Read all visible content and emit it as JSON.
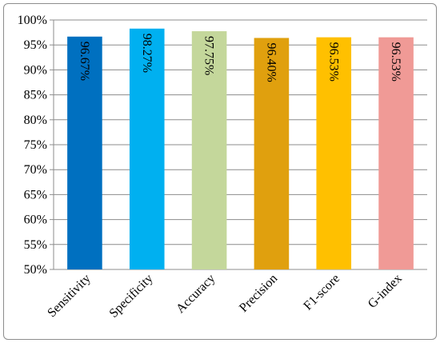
{
  "chart_data": {
    "type": "bar",
    "title": "",
    "xlabel": "",
    "ylabel": "",
    "ylim": [
      50,
      100
    ],
    "ytick_step": 5,
    "ytick_labels": [
      "50%",
      "55%",
      "60%",
      "65%",
      "70%",
      "75%",
      "80%",
      "85%",
      "90%",
      "95%",
      "100%"
    ],
    "grid": true,
    "legend": "none",
    "categories": [
      "Sensitivity",
      "Specificity",
      "Accuracy",
      "Precision",
      "F1-score",
      "G-index"
    ],
    "values": [
      96.67,
      98.27,
      97.75,
      96.4,
      96.53,
      96.53
    ],
    "data_labels": [
      "96.67%",
      "98.27%",
      "97.75%",
      "96.40%",
      "96.53%",
      "96.53%"
    ],
    "colors": [
      "#0070c0",
      "#00b0f0",
      "#c4d79b",
      "#e0a00e",
      "#ffc000",
      "#f09a96"
    ]
  }
}
